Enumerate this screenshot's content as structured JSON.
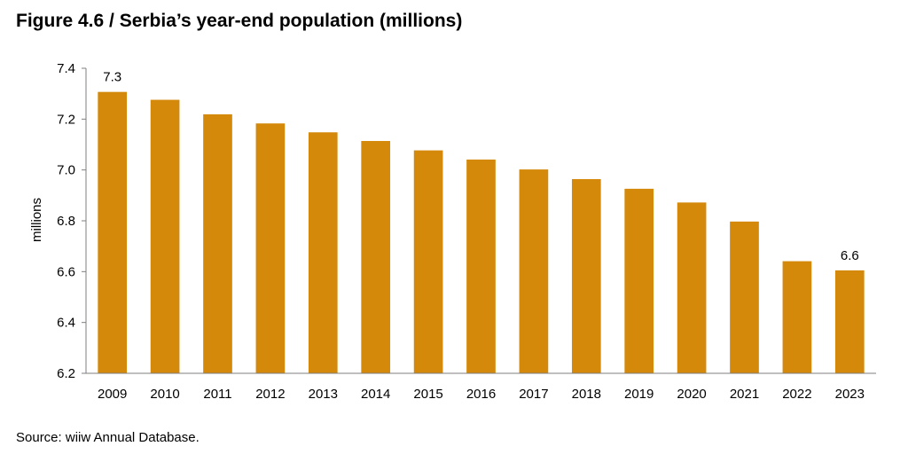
{
  "title": "Figure 4.6 / Serbia’s year-end population (millions)",
  "source": "Source: wiiw Annual Database.",
  "chart_data": {
    "type": "bar",
    "title": "Figure 4.6 / Serbia’s year-end population (millions)",
    "xlabel": "",
    "ylabel": "millions",
    "ylim": [
      6.2,
      7.4
    ],
    "yticks": [
      "6.2",
      "6.4",
      "6.6",
      "6.8",
      "7.0",
      "7.2",
      "7.4"
    ],
    "grid": false,
    "legend": "none",
    "bar_color": "#d4890a",
    "categories": [
      "2009",
      "2010",
      "2011",
      "2012",
      "2013",
      "2014",
      "2015",
      "2016",
      "2017",
      "2018",
      "2019",
      "2020",
      "2021",
      "2022",
      "2023"
    ],
    "values": [
      7.307,
      7.276,
      7.219,
      7.183,
      7.148,
      7.114,
      7.077,
      7.041,
      7.002,
      6.964,
      6.926,
      6.872,
      6.797,
      6.641,
      6.605
    ],
    "data_labels": [
      {
        "category": "2009",
        "text": "7.3"
      },
      {
        "category": "2023",
        "text": "6.6"
      }
    ]
  }
}
